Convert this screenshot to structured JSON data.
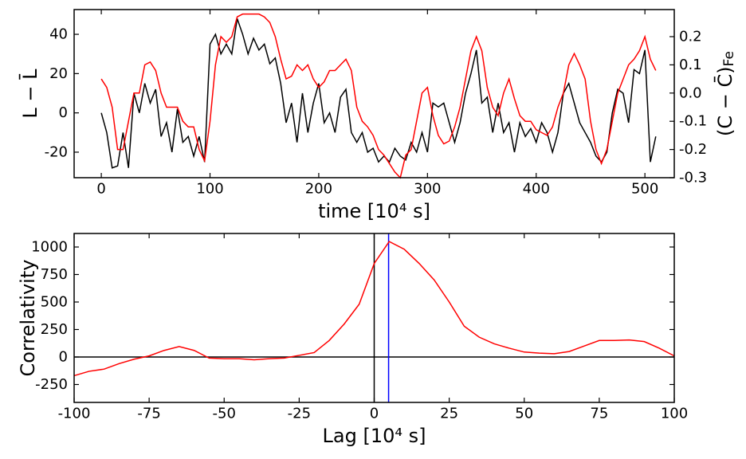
{
  "chart_data": [
    {
      "type": "line",
      "xlabel": "time [10⁴ s]",
      "ylabel": "L − L̄",
      "y2label": "(C − C̄)",
      "y2label_subscript": "Fe",
      "x": [
        0,
        5,
        10,
        15,
        20,
        25,
        30,
        35,
        40,
        45,
        50,
        55,
        60,
        65,
        70,
        75,
        80,
        85,
        90,
        95,
        100,
        105,
        110,
        115,
        120,
        125,
        130,
        135,
        140,
        145,
        150,
        155,
        160,
        165,
        170,
        175,
        180,
        185,
        190,
        195,
        200,
        205,
        210,
        215,
        220,
        225,
        230,
        235,
        240,
        245,
        250,
        255,
        260,
        265,
        270,
        275,
        280,
        285,
        290,
        295,
        300,
        305,
        310,
        315,
        320,
        325,
        330,
        335,
        340,
        345,
        350,
        355,
        360,
        365,
        370,
        375,
        380,
        385,
        390,
        395,
        400,
        405,
        410,
        415,
        420,
        425,
        430,
        435,
        440,
        445,
        450,
        455,
        460,
        465,
        470,
        475,
        480,
        485,
        490,
        495,
        500,
        505,
        510
      ],
      "series": [
        {
          "color": "#000000",
          "values": [
            0,
            -10,
            -28,
            -27,
            -10,
            -28,
            10,
            0,
            15,
            5,
            12,
            -12,
            -5,
            -20,
            2,
            -15,
            -12,
            -22,
            -12,
            -25,
            35,
            40,
            30,
            35,
            30,
            48,
            40,
            30,
            38,
            32,
            35,
            25,
            28,
            15,
            -5,
            5,
            -15,
            10,
            -10,
            5,
            15,
            -5,
            0,
            -10,
            8,
            12,
            -10,
            -15,
            -10,
            -20,
            -18,
            -25,
            -22,
            -25,
            -18,
            -22,
            -24,
            -15,
            -20,
            -10,
            -20,
            5,
            3,
            5,
            -5,
            -15,
            -5,
            10,
            20,
            32,
            5,
            8,
            -10,
            5,
            -10,
            -5,
            -20,
            -5,
            -12,
            -8,
            -15,
            -5,
            -10,
            -20,
            -10,
            10,
            15,
            5,
            -5,
            -10,
            -15,
            -22,
            -25,
            -20,
            0,
            12,
            10,
            -5,
            22,
            20,
            32,
            -25,
            -12
          ]
        },
        {
          "color": "#ff0000",
          "axis": "y2",
          "values": [
            0.05,
            0.02,
            -0.05,
            -0.2,
            -0.2,
            -0.1,
            0.0,
            0.0,
            0.1,
            0.11,
            0.08,
            0.0,
            -0.05,
            -0.05,
            -0.05,
            -0.1,
            -0.12,
            -0.12,
            -0.2,
            -0.24,
            -0.1,
            0.1,
            0.2,
            0.18,
            0.2,
            0.27,
            0.28,
            0.28,
            0.28,
            0.28,
            0.27,
            0.25,
            0.2,
            0.12,
            0.05,
            0.06,
            0.1,
            0.08,
            0.1,
            0.05,
            0.02,
            0.04,
            0.08,
            0.08,
            0.1,
            0.12,
            0.08,
            -0.05,
            -0.1,
            -0.12,
            -0.15,
            -0.2,
            -0.22,
            -0.25,
            -0.28,
            -0.3,
            -0.22,
            -0.2,
            -0.1,
            0.0,
            0.02,
            -0.08,
            -0.15,
            -0.18,
            -0.17,
            -0.12,
            -0.05,
            0.05,
            0.15,
            0.2,
            0.15,
            0.02,
            -0.05,
            -0.08,
            0.0,
            0.05,
            -0.02,
            -0.08,
            -0.1,
            -0.1,
            -0.13,
            -0.14,
            -0.15,
            -0.12,
            -0.05,
            0.0,
            0.1,
            0.14,
            0.1,
            0.05,
            -0.1,
            -0.2,
            -0.25,
            -0.2,
            -0.1,
            0.0,
            0.05,
            0.1,
            0.12,
            0.15,
            0.2,
            0.12,
            0.08
          ]
        }
      ],
      "xlim": [
        -25,
        527
      ],
      "xticks": [
        0,
        100,
        200,
        300,
        400,
        500
      ],
      "ylim": [
        -33,
        52.6
      ],
      "yticks": [
        -20,
        0,
        20,
        40
      ],
      "y2lim": [
        -0.3,
        0.296
      ],
      "y2ticks": [
        -0.3,
        -0.2,
        -0.1,
        {
          "value": 0,
          "label": "0.0"
        },
        0.1,
        0.2
      ]
    },
    {
      "type": "line",
      "xlabel": "Lag [10⁴ s]",
      "ylabel": "Correlativity",
      "x": [
        -100,
        -95,
        -90,
        -85,
        -80,
        -75,
        -70,
        -65,
        -60,
        -55,
        -50,
        -45,
        -40,
        -35,
        -30,
        -25,
        -20,
        -15,
        -10,
        -5,
        0,
        5,
        10,
        15,
        20,
        25,
        30,
        35,
        40,
        45,
        50,
        55,
        60,
        65,
        70,
        75,
        80,
        85,
        90,
        95,
        100
      ],
      "series": [
        {
          "color": "#ff0000",
          "values": [
            -170,
            -130,
            -110,
            -60,
            -20,
            10,
            60,
            95,
            60,
            -10,
            -15,
            -15,
            -25,
            -15,
            -10,
            15,
            40,
            150,
            300,
            480,
            850,
            1050,
            980,
            850,
            700,
            500,
            280,
            180,
            120,
            80,
            45,
            35,
            30,
            50,
            100,
            150,
            150,
            155,
            140,
            80,
            10
          ]
        }
      ],
      "hlines": [
        {
          "value": 0,
          "color": "#000000"
        }
      ],
      "vlines": [
        {
          "value": 0,
          "color": "#000000"
        },
        {
          "value": 4.8,
          "color": "#0000ff"
        }
      ],
      "xlim": [
        -100,
        100
      ],
      "xticks": [
        -100,
        -75,
        -50,
        -25,
        0,
        25,
        50,
        75,
        100
      ],
      "ylim": [
        -413,
        1123
      ],
      "yticks": [
        -250,
        0,
        250,
        500,
        750,
        1000
      ]
    }
  ]
}
